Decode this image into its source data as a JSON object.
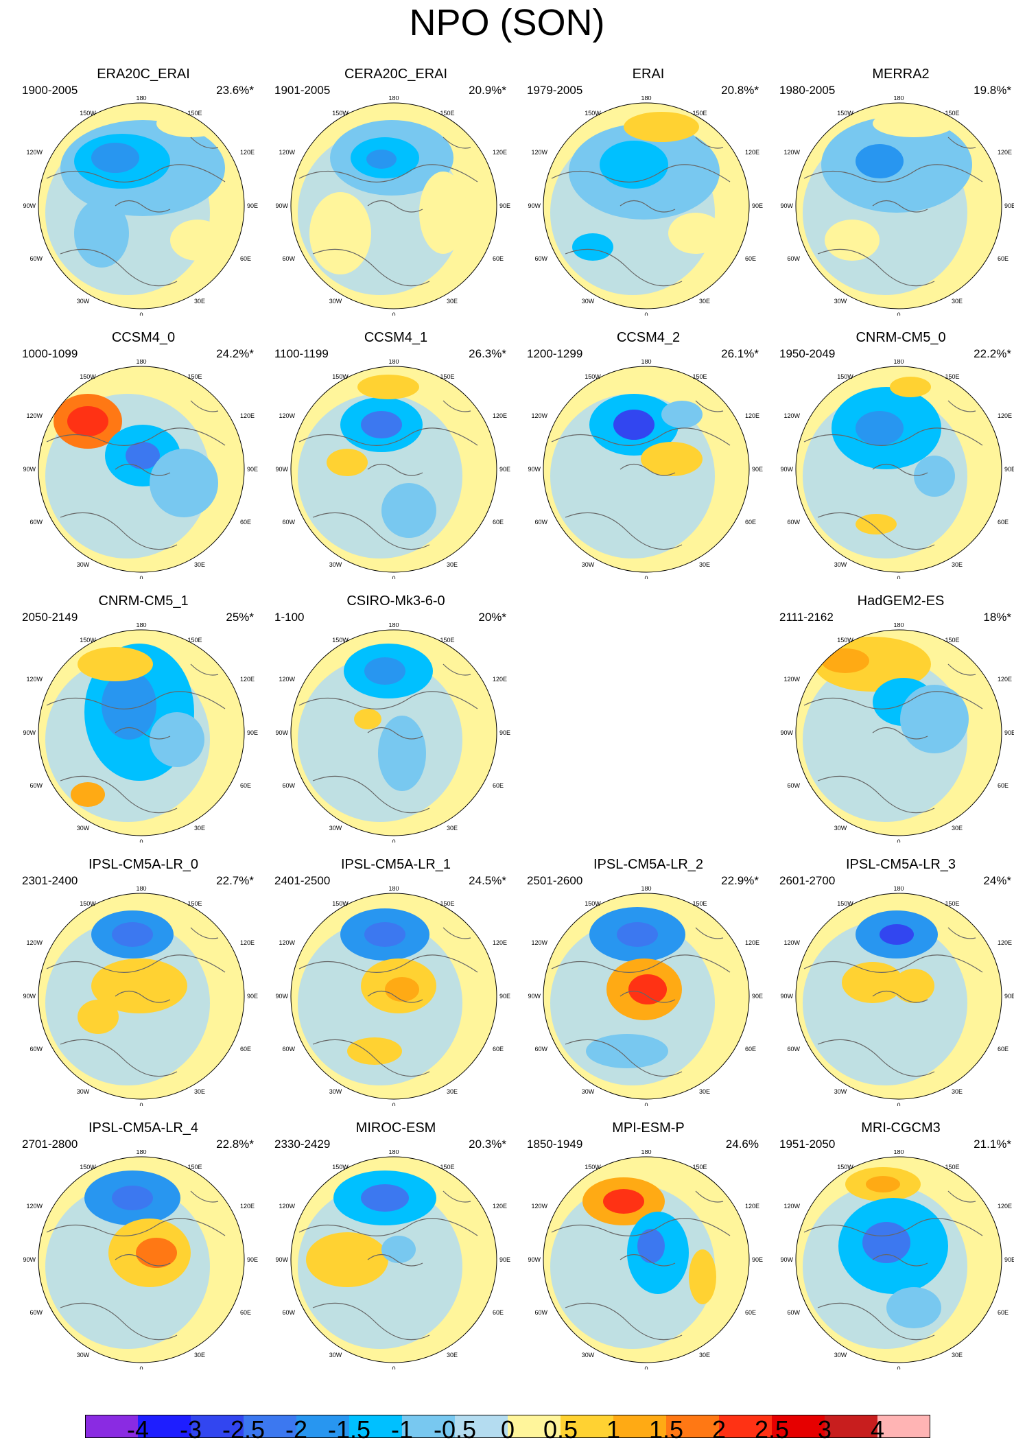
{
  "title": "NPO (SON)",
  "colorbar": {
    "colors": [
      "#8a2be2",
      "#1e1eff",
      "#3246f0",
      "#3c78f0",
      "#2896f0",
      "#00c0ff",
      "#78c8f0",
      "#b4dcf0",
      "#fff59b",
      "#ffd232",
      "#ffaa14",
      "#ff7814",
      "#ff3214",
      "#e60000",
      "#c81e1e",
      "#ffb4b4"
    ],
    "ticks": [
      "-4",
      "-3",
      "-2.5",
      "-2",
      "-1.5",
      "-1",
      "-0.5",
      "0",
      "0.5",
      "1",
      "1.5",
      "2",
      "2.5",
      "3",
      "4"
    ]
  },
  "lon_labels": {
    "top": "180",
    "top_left": "150W",
    "top_right": "150E",
    "upper_left": "120W",
    "upper_right": "120E",
    "left": "90W",
    "right": "90E",
    "lower_left": "60W",
    "lower_right": "60E",
    "bottom_left": "30W",
    "bottom_right": "30E",
    "bottom": "0"
  },
  "panels": [
    {
      "title": "ERA20C_ERAI",
      "period": "1900-2005",
      "percent": "23.6%*"
    },
    {
      "title": "CERA20C_ERAI",
      "period": "1901-2005",
      "percent": "20.9%*"
    },
    {
      "title": "ERAI",
      "period": "1979-2005",
      "percent": "20.8%*"
    },
    {
      "title": "MERRA2",
      "period": "1980-2005",
      "percent": "19.8%*"
    },
    {
      "title": "CCSM4_0",
      "period": "1000-1099",
      "percent": "24.2%*"
    },
    {
      "title": "CCSM4_1",
      "period": "1100-1199",
      "percent": "26.3%*"
    },
    {
      "title": "CCSM4_2",
      "period": "1200-1299",
      "percent": "26.1%*"
    },
    {
      "title": "CNRM-CM5_0",
      "period": "1950-2049",
      "percent": "22.2%*"
    },
    {
      "title": "CNRM-CM5_1",
      "period": "2050-2149",
      "percent": "25%*"
    },
    {
      "title": "CSIRO-Mk3-6-0",
      "period": "1-100",
      "percent": "20%*"
    },
    {
      "title": "HadGEM2-ES",
      "period": "2111-2162",
      "percent": "18%*"
    },
    {
      "title": "IPSL-CM5A-LR_0",
      "period": "2301-2400",
      "percent": "22.7%*"
    },
    {
      "title": "IPSL-CM5A-LR_1",
      "period": "2401-2500",
      "percent": "24.5%*"
    },
    {
      "title": "IPSL-CM5A-LR_2",
      "period": "2501-2600",
      "percent": "22.9%*"
    },
    {
      "title": "IPSL-CM5A-LR_3",
      "period": "2601-2700",
      "percent": "24%*"
    },
    {
      "title": "IPSL-CM5A-LR_4",
      "period": "2701-2800",
      "percent": "22.8%*"
    },
    {
      "title": "MIROC-ESM",
      "period": "2330-2429",
      "percent": "20.3%*"
    },
    {
      "title": "MPI-ESM-P",
      "period": "1850-1949",
      "percent": "24.6%"
    },
    {
      "title": "MRI-CGCM3",
      "period": "1951-2050",
      "percent": "21.1%*"
    }
  ]
}
